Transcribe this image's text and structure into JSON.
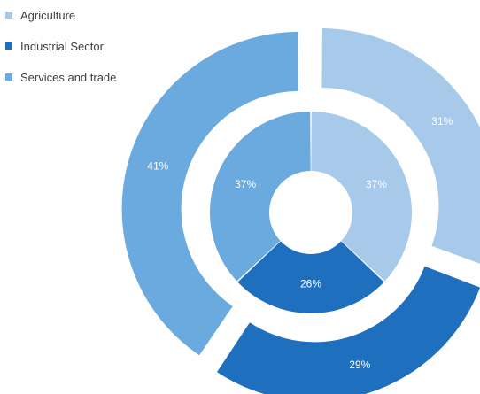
{
  "chart_data": {
    "type": "pie",
    "subtype": "nested-donut",
    "legend_position": "top-left",
    "categories": [
      "Agriculture",
      "Industrial Sector",
      "Services and trade"
    ],
    "colors": {
      "Agriculture": "#a7c9ea",
      "Industrial Sector": "#1f6fbf",
      "Services and trade": "#6aaade"
    },
    "series": [
      {
        "ring": "inner",
        "values": [
          37,
          26,
          37
        ],
        "labels": [
          "37%",
          "26%",
          "37%"
        ]
      },
      {
        "ring": "outer",
        "values": [
          31,
          29,
          41
        ],
        "labels": [
          "31%",
          "29%",
          "41%"
        ]
      }
    ]
  }
}
